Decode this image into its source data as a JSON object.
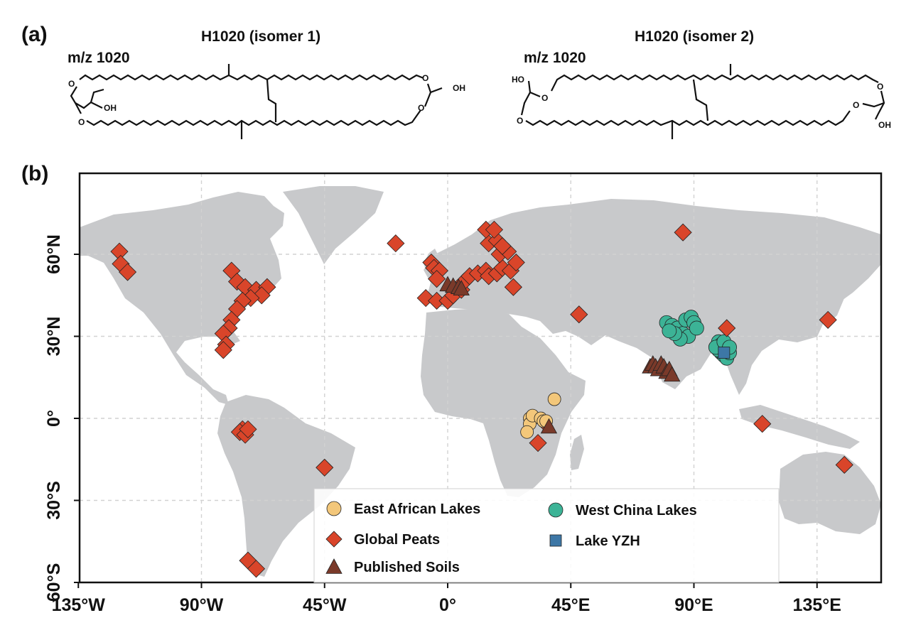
{
  "panel_a": {
    "label": "(a)",
    "isomer1": {
      "title": "H1020 (isomer 1)",
      "mz": "m/z 1020",
      "oh1": "OH",
      "oh2": "OH",
      "o": "O"
    },
    "isomer2": {
      "title": "H1020 (isomer 2)",
      "mz": "m/z 1020",
      "ho": "HO",
      "oh": "OH",
      "o": "O"
    }
  },
  "panel_b": {
    "label": "(b)",
    "map": {
      "x_ticks": [
        "135°W",
        "90°W",
        "45°W",
        "0°",
        "45°E",
        "90°E",
        "135°E"
      ],
      "y_ticks": [
        "60°N",
        "30°N",
        "0°",
        "30°S",
        "60°S"
      ],
      "grid": "dashed",
      "land_color": "#c8c9cb",
      "colors": {
        "east_african_lakes": "#f3c77a",
        "global_peats": "#d9452a",
        "published_soils": "#7a3a2a",
        "west_china_lakes": "#3cb396",
        "lake_yzh": "#3d77a6"
      },
      "legend": {
        "placement": "bottom-center",
        "items": [
          {
            "label": "East African Lakes",
            "marker": "circle"
          },
          {
            "label": "Global Peats",
            "marker": "diamond"
          },
          {
            "label": "Published Soils",
            "marker": "triangle"
          },
          {
            "label": "West China Lakes",
            "marker": "circle"
          },
          {
            "label": "Lake YZH",
            "marker": "square"
          }
        ]
      }
    },
    "sites": {
      "global_peats": [
        [
          -120,
          61
        ],
        [
          -119.5,
          56.5
        ],
        [
          -117,
          53.5
        ],
        [
          -79,
          54
        ],
        [
          -77,
          50
        ],
        [
          -74,
          48
        ],
        [
          -70,
          47
        ],
        [
          -66,
          48
        ],
        [
          -68,
          45
        ],
        [
          -72,
          44
        ],
        [
          -75,
          43
        ],
        [
          -77,
          40
        ],
        [
          -79,
          36
        ],
        [
          -80,
          33
        ],
        [
          -82,
          31
        ],
        [
          -81,
          27
        ],
        [
          -82,
          25
        ],
        [
          -75,
          -4
        ],
        [
          -76,
          -5
        ],
        [
          -74,
          -6
        ],
        [
          -73,
          -4
        ],
        [
          -45,
          -18
        ],
        [
          -73,
          -52
        ],
        [
          -70,
          -55
        ],
        [
          -19,
          64
        ],
        [
          -6,
          57
        ],
        [
          -5,
          55
        ],
        [
          -3,
          54
        ],
        [
          -4,
          51
        ],
        [
          -8,
          44
        ],
        [
          -4,
          43
        ],
        [
          0,
          43
        ],
        [
          2,
          45
        ],
        [
          5,
          47
        ],
        [
          6,
          50
        ],
        [
          8,
          52
        ],
        [
          11,
          53
        ],
        [
          14,
          54
        ],
        [
          15,
          52
        ],
        [
          18,
          53
        ],
        [
          20,
          55
        ],
        [
          23,
          54
        ],
        [
          25,
          57
        ],
        [
          19,
          60
        ],
        [
          22,
          61
        ],
        [
          15,
          64
        ],
        [
          18,
          65
        ],
        [
          14,
          69
        ],
        [
          17,
          69
        ],
        [
          20,
          63
        ],
        [
          24,
          48
        ],
        [
          48,
          38
        ],
        [
          86,
          68
        ],
        [
          102,
          33
        ],
        [
          115,
          -2
        ],
        [
          139,
          36
        ],
        [
          145,
          -17
        ],
        [
          33,
          -9
        ],
        [
          35,
          -1
        ]
      ],
      "published_soils": [
        [
          0,
          49
        ],
        [
          2,
          48.5
        ],
        [
          4,
          48
        ],
        [
          5,
          47.5
        ],
        [
          74,
          19
        ],
        [
          75,
          20
        ],
        [
          76,
          19
        ],
        [
          77,
          18
        ],
        [
          78,
          20
        ],
        [
          79,
          19
        ],
        [
          80,
          17
        ],
        [
          81,
          18
        ],
        [
          82,
          16
        ],
        [
          37,
          -3
        ]
      ],
      "east_african_lakes": [
        [
          30,
          0
        ],
        [
          30,
          -2
        ],
        [
          29,
          -5
        ],
        [
          31,
          1
        ],
        [
          34,
          0
        ],
        [
          35,
          -1
        ],
        [
          36,
          -1
        ],
        [
          39,
          7
        ]
      ],
      "west_china_lakes": [
        [
          80,
          35
        ],
        [
          82,
          34
        ],
        [
          84,
          33
        ],
        [
          86,
          31
        ],
        [
          88,
          30
        ],
        [
          87,
          36
        ],
        [
          89,
          37
        ],
        [
          90,
          35
        ],
        [
          91,
          33
        ],
        [
          85,
          29
        ],
        [
          83,
          31
        ],
        [
          81,
          32
        ],
        [
          99,
          28
        ],
        [
          100,
          27
        ],
        [
          101,
          26
        ],
        [
          102,
          25
        ],
        [
          100,
          24
        ],
        [
          101,
          23
        ],
        [
          102,
          22
        ],
        [
          103,
          24
        ],
        [
          99,
          25
        ],
        [
          98,
          26
        ],
        [
          101,
          28
        ],
        [
          103,
          26
        ]
      ],
      "lake_yzh": [
        [
          101,
          24
        ]
      ]
    }
  }
}
